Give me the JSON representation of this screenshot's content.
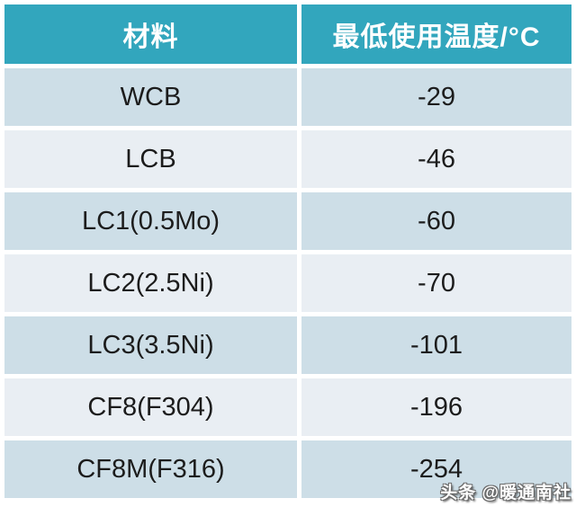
{
  "chart_data": {
    "type": "table",
    "columns": [
      "材料",
      "最低使用温度/°C"
    ],
    "rows": [
      [
        "WCB",
        "-29"
      ],
      [
        "LCB",
        "-46"
      ],
      [
        "LC1(0.5Mo)",
        "-60"
      ],
      [
        "LC2(2.5Ni)",
        "-70"
      ],
      [
        "LC3(3.5Ni)",
        "-101"
      ],
      [
        "CF8(F304)",
        "-196"
      ],
      [
        "CF8M(F316)",
        "-254"
      ]
    ]
  },
  "watermark": {
    "text": "头条 @暖通南社"
  },
  "colors": {
    "header_bg": "#32a6bd",
    "header_text": "#ffffff",
    "row_odd_bg": "#cddee7",
    "row_even_bg": "#e9eef3",
    "cell_text": "#1c1c1c",
    "page_bg": "#ffffff",
    "watermark_text": "#ffffff",
    "watermark_outline": "#6a6a6a"
  }
}
